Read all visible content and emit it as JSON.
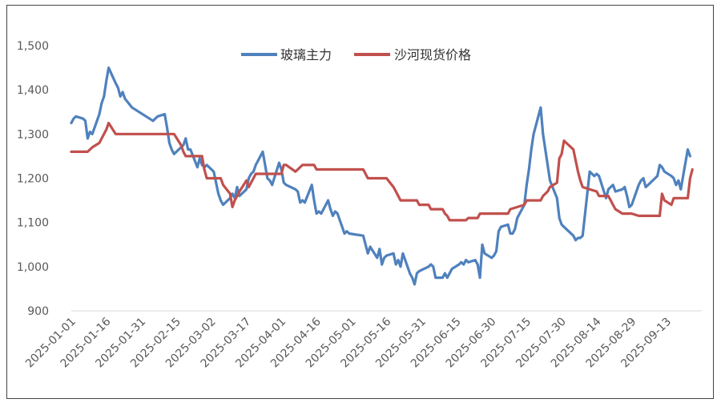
{
  "chart_data": {
    "type": "line",
    "title": "",
    "xlabel": "",
    "ylabel": "",
    "ylim": [
      900,
      1500
    ],
    "yticks": [
      900,
      1000,
      1100,
      1200,
      1300,
      1400,
      1500
    ],
    "ytick_labels": [
      "900",
      "1,000",
      "1,100",
      "1,200",
      "1,300",
      "1,400",
      "1,500"
    ],
    "xlim": [
      "2025-01-01",
      "2025-09-28"
    ],
    "xtick_labels": [
      "2025-01-01",
      "2025-01-16",
      "2025-01-31",
      "2025-02-15",
      "2025-03-02",
      "2025-03-17",
      "2025-04-01",
      "2025-04-16",
      "2025-05-01",
      "2025-05-16",
      "2025-05-31",
      "2025-06-15",
      "2025-06-30",
      "2025-07-15",
      "2025-07-30",
      "2025-08-14",
      "2025-08-29",
      "2025-09-13"
    ],
    "grid": false,
    "legend_position": "top",
    "series": [
      {
        "name": "玻璃主力",
        "color": "#4f81bd",
        "points": [
          [
            "2025-01-01",
            1325
          ],
          [
            "2025-01-02",
            1335
          ],
          [
            "2025-01-03",
            1340
          ],
          [
            "2025-01-06",
            1335
          ],
          [
            "2025-01-07",
            1330
          ],
          [
            "2025-01-08",
            1290
          ],
          [
            "2025-01-09",
            1305
          ],
          [
            "2025-01-10",
            1300
          ],
          [
            "2025-01-13",
            1345
          ],
          [
            "2025-01-14",
            1370
          ],
          [
            "2025-01-15",
            1385
          ],
          [
            "2025-01-16",
            1420
          ],
          [
            "2025-01-17",
            1450
          ],
          [
            "2025-01-20",
            1415
          ],
          [
            "2025-01-21",
            1405
          ],
          [
            "2025-01-22",
            1385
          ],
          [
            "2025-01-23",
            1395
          ],
          [
            "2025-01-24",
            1380
          ],
          [
            "2025-01-27",
            1360
          ],
          [
            "2025-02-05",
            1330
          ],
          [
            "2025-02-06",
            1335
          ],
          [
            "2025-02-07",
            1340
          ],
          [
            "2025-02-10",
            1345
          ],
          [
            "2025-02-11",
            1315
          ],
          [
            "2025-02-12",
            1280
          ],
          [
            "2025-02-13",
            1265
          ],
          [
            "2025-02-14",
            1255
          ],
          [
            "2025-02-17",
            1270
          ],
          [
            "2025-02-18",
            1275
          ],
          [
            "2025-02-19",
            1290
          ],
          [
            "2025-02-20",
            1265
          ],
          [
            "2025-02-21",
            1265
          ],
          [
            "2025-02-24",
            1225
          ],
          [
            "2025-02-25",
            1245
          ],
          [
            "2025-02-26",
            1230
          ],
          [
            "2025-02-27",
            1225
          ],
          [
            "2025-02-28",
            1230
          ],
          [
            "2025-03-03",
            1215
          ],
          [
            "2025-03-04",
            1190
          ],
          [
            "2025-03-05",
            1165
          ],
          [
            "2025-03-06",
            1150
          ],
          [
            "2025-03-07",
            1140
          ],
          [
            "2025-03-10",
            1155
          ],
          [
            "2025-03-11",
            1165
          ],
          [
            "2025-03-12",
            1155
          ],
          [
            "2025-03-13",
            1180
          ],
          [
            "2025-03-14",
            1160
          ],
          [
            "2025-03-17",
            1175
          ],
          [
            "2025-03-18",
            1200
          ],
          [
            "2025-03-19",
            1210
          ],
          [
            "2025-03-20",
            1215
          ],
          [
            "2025-03-21",
            1230
          ],
          [
            "2025-03-24",
            1260
          ],
          [
            "2025-03-25",
            1230
          ],
          [
            "2025-03-26",
            1200
          ],
          [
            "2025-03-27",
            1195
          ],
          [
            "2025-03-28",
            1185
          ],
          [
            "2025-03-31",
            1235
          ],
          [
            "2025-04-01",
            1220
          ],
          [
            "2025-04-02",
            1190
          ],
          [
            "2025-04-03",
            1185
          ],
          [
            "2025-04-07",
            1175
          ],
          [
            "2025-04-08",
            1170
          ],
          [
            "2025-04-09",
            1145
          ],
          [
            "2025-04-10",
            1150
          ],
          [
            "2025-04-11",
            1145
          ],
          [
            "2025-04-14",
            1185
          ],
          [
            "2025-04-15",
            1150
          ],
          [
            "2025-04-16",
            1120
          ],
          [
            "2025-04-17",
            1125
          ],
          [
            "2025-04-18",
            1120
          ],
          [
            "2025-04-21",
            1150
          ],
          [
            "2025-04-22",
            1130
          ],
          [
            "2025-04-23",
            1115
          ],
          [
            "2025-04-24",
            1125
          ],
          [
            "2025-04-25",
            1120
          ],
          [
            "2025-04-28",
            1075
          ],
          [
            "2025-04-29",
            1080
          ],
          [
            "2025-04-30",
            1075
          ],
          [
            "2025-05-06",
            1070
          ],
          [
            "2025-05-07",
            1050
          ],
          [
            "2025-05-08",
            1030
          ],
          [
            "2025-05-09",
            1045
          ],
          [
            "2025-05-12",
            1020
          ],
          [
            "2025-05-13",
            1040
          ],
          [
            "2025-05-14",
            1005
          ],
          [
            "2025-05-15",
            1020
          ],
          [
            "2025-05-16",
            1025
          ],
          [
            "2025-05-19",
            1030
          ],
          [
            "2025-05-20",
            1005
          ],
          [
            "2025-05-21",
            1015
          ],
          [
            "2025-05-22",
            1000
          ],
          [
            "2025-05-23",
            1030
          ],
          [
            "2025-05-26",
            985
          ],
          [
            "2025-05-27",
            975
          ],
          [
            "2025-05-28",
            960
          ],
          [
            "2025-05-29",
            985
          ],
          [
            "2025-05-30",
            990
          ],
          [
            "2025-06-03",
            1000
          ],
          [
            "2025-06-04",
            1005
          ],
          [
            "2025-06-05",
            1000
          ],
          [
            "2025-06-06",
            975
          ],
          [
            "2025-06-09",
            975
          ],
          [
            "2025-06-10",
            985
          ],
          [
            "2025-06-11",
            975
          ],
          [
            "2025-06-12",
            985
          ],
          [
            "2025-06-13",
            995
          ],
          [
            "2025-06-16",
            1005
          ],
          [
            "2025-06-17",
            1010
          ],
          [
            "2025-06-18",
            1005
          ],
          [
            "2025-06-19",
            1015
          ],
          [
            "2025-06-20",
            1010
          ],
          [
            "2025-06-23",
            1015
          ],
          [
            "2025-06-24",
            1005
          ],
          [
            "2025-06-25",
            975
          ],
          [
            "2025-06-26",
            1050
          ],
          [
            "2025-06-27",
            1030
          ],
          [
            "2025-06-30",
            1020
          ],
          [
            "2025-07-01",
            1025
          ],
          [
            "2025-07-02",
            1035
          ],
          [
            "2025-07-03",
            1080
          ],
          [
            "2025-07-04",
            1090
          ],
          [
            "2025-07-07",
            1095
          ],
          [
            "2025-07-08",
            1075
          ],
          [
            "2025-07-09",
            1075
          ],
          [
            "2025-07-10",
            1085
          ],
          [
            "2025-07-11",
            1110
          ],
          [
            "2025-07-14",
            1140
          ],
          [
            "2025-07-15",
            1185
          ],
          [
            "2025-07-16",
            1220
          ],
          [
            "2025-07-17",
            1265
          ],
          [
            "2025-07-18",
            1300
          ],
          [
            "2025-07-21",
            1360
          ],
          [
            "2025-07-22",
            1300
          ],
          [
            "2025-07-23",
            1265
          ],
          [
            "2025-07-24",
            1230
          ],
          [
            "2025-07-25",
            1195
          ],
          [
            "2025-07-28",
            1155
          ],
          [
            "2025-07-29",
            1110
          ],
          [
            "2025-07-30",
            1095
          ],
          [
            "2025-07-31",
            1090
          ],
          [
            "2025-08-01",
            1085
          ],
          [
            "2025-08-04",
            1070
          ],
          [
            "2025-08-05",
            1060
          ],
          [
            "2025-08-06",
            1065
          ],
          [
            "2025-08-07",
            1065
          ],
          [
            "2025-08-08",
            1070
          ],
          [
            "2025-08-11",
            1215
          ],
          [
            "2025-08-12",
            1210
          ],
          [
            "2025-08-13",
            1205
          ],
          [
            "2025-08-14",
            1210
          ],
          [
            "2025-08-15",
            1205
          ],
          [
            "2025-08-18",
            1155
          ],
          [
            "2025-08-19",
            1175
          ],
          [
            "2025-08-20",
            1180
          ],
          [
            "2025-08-21",
            1185
          ],
          [
            "2025-08-22",
            1170
          ],
          [
            "2025-08-25",
            1175
          ],
          [
            "2025-08-26",
            1180
          ],
          [
            "2025-08-27",
            1160
          ],
          [
            "2025-08-28",
            1135
          ],
          [
            "2025-08-29",
            1140
          ],
          [
            "2025-09-01",
            1185
          ],
          [
            "2025-09-02",
            1195
          ],
          [
            "2025-09-03",
            1200
          ],
          [
            "2025-09-04",
            1180
          ],
          [
            "2025-09-05",
            1185
          ],
          [
            "2025-09-08",
            1200
          ],
          [
            "2025-09-09",
            1205
          ],
          [
            "2025-09-10",
            1230
          ],
          [
            "2025-09-11",
            1225
          ],
          [
            "2025-09-12",
            1215
          ],
          [
            "2025-09-15",
            1205
          ],
          [
            "2025-09-16",
            1200
          ],
          [
            "2025-09-17",
            1185
          ],
          [
            "2025-09-18",
            1195
          ],
          [
            "2025-09-19",
            1175
          ],
          [
            "2025-09-22",
            1265
          ],
          [
            "2025-09-23",
            1250
          ]
        ]
      },
      {
        "name": "沙河现货价格",
        "color": "#c0504d",
        "points": [
          [
            "2025-01-01",
            1260
          ],
          [
            "2025-01-08",
            1260
          ],
          [
            "2025-01-10",
            1270
          ],
          [
            "2025-01-13",
            1280
          ],
          [
            "2025-01-14",
            1290
          ],
          [
            "2025-01-15",
            1300
          ],
          [
            "2025-01-16",
            1310
          ],
          [
            "2025-01-17",
            1325
          ],
          [
            "2025-01-20",
            1300
          ],
          [
            "2025-02-14",
            1300
          ],
          [
            "2025-02-17",
            1275
          ],
          [
            "2025-02-18",
            1260
          ],
          [
            "2025-02-19",
            1250
          ],
          [
            "2025-02-26",
            1250
          ],
          [
            "2025-02-27",
            1220
          ],
          [
            "2025-02-28",
            1200
          ],
          [
            "2025-03-06",
            1200
          ],
          [
            "2025-03-07",
            1185
          ],
          [
            "2025-03-10",
            1165
          ],
          [
            "2025-03-11",
            1135
          ],
          [
            "2025-03-12",
            1150
          ],
          [
            "2025-03-13",
            1160
          ],
          [
            "2025-03-14",
            1170
          ],
          [
            "2025-03-17",
            1195
          ],
          [
            "2025-03-18",
            1180
          ],
          [
            "2025-03-19",
            1190
          ],
          [
            "2025-03-20",
            1200
          ],
          [
            "2025-03-21",
            1210
          ],
          [
            "2025-04-01",
            1210
          ],
          [
            "2025-04-02",
            1230
          ],
          [
            "2025-04-03",
            1230
          ],
          [
            "2025-04-07",
            1215
          ],
          [
            "2025-04-08",
            1220
          ],
          [
            "2025-04-10",
            1230
          ],
          [
            "2025-04-15",
            1230
          ],
          [
            "2025-04-16",
            1220
          ],
          [
            "2025-05-06",
            1220
          ],
          [
            "2025-05-07",
            1210
          ],
          [
            "2025-05-08",
            1200
          ],
          [
            "2025-05-16",
            1200
          ],
          [
            "2025-05-19",
            1180
          ],
          [
            "2025-05-20",
            1170
          ],
          [
            "2025-05-21",
            1160
          ],
          [
            "2025-05-22",
            1150
          ],
          [
            "2025-05-29",
            1150
          ],
          [
            "2025-05-30",
            1140
          ],
          [
            "2025-06-03",
            1140
          ],
          [
            "2025-06-04",
            1130
          ],
          [
            "2025-06-09",
            1130
          ],
          [
            "2025-06-10",
            1120
          ],
          [
            "2025-06-11",
            1115
          ],
          [
            "2025-06-12",
            1105
          ],
          [
            "2025-06-19",
            1105
          ],
          [
            "2025-06-20",
            1110
          ],
          [
            "2025-06-24",
            1110
          ],
          [
            "2025-06-25",
            1120
          ],
          [
            "2025-07-07",
            1120
          ],
          [
            "2025-07-08",
            1130
          ],
          [
            "2025-07-14",
            1140
          ],
          [
            "2025-07-15",
            1150
          ],
          [
            "2025-07-21",
            1150
          ],
          [
            "2025-07-22",
            1160
          ],
          [
            "2025-07-24",
            1170
          ],
          [
            "2025-07-25",
            1180
          ],
          [
            "2025-07-28",
            1190
          ],
          [
            "2025-07-29",
            1245
          ],
          [
            "2025-07-30",
            1255
          ],
          [
            "2025-07-31",
            1285
          ],
          [
            "2025-08-01",
            1280
          ],
          [
            "2025-08-04",
            1265
          ],
          [
            "2025-08-05",
            1240
          ],
          [
            "2025-08-06",
            1215
          ],
          [
            "2025-08-07",
            1195
          ],
          [
            "2025-08-08",
            1180
          ],
          [
            "2025-08-11",
            1175
          ],
          [
            "2025-08-14",
            1170
          ],
          [
            "2025-08-15",
            1160
          ],
          [
            "2025-08-19",
            1160
          ],
          [
            "2025-08-20",
            1150
          ],
          [
            "2025-08-21",
            1140
          ],
          [
            "2025-08-22",
            1130
          ],
          [
            "2025-08-25",
            1120
          ],
          [
            "2025-08-29",
            1120
          ],
          [
            "2025-09-01",
            1115
          ],
          [
            "2025-09-10",
            1115
          ],
          [
            "2025-09-11",
            1165
          ],
          [
            "2025-09-12",
            1150
          ],
          [
            "2025-09-15",
            1140
          ],
          [
            "2025-09-16",
            1155
          ],
          [
            "2025-09-22",
            1155
          ],
          [
            "2025-09-23",
            1200
          ],
          [
            "2025-09-24",
            1220
          ]
        ]
      }
    ]
  }
}
